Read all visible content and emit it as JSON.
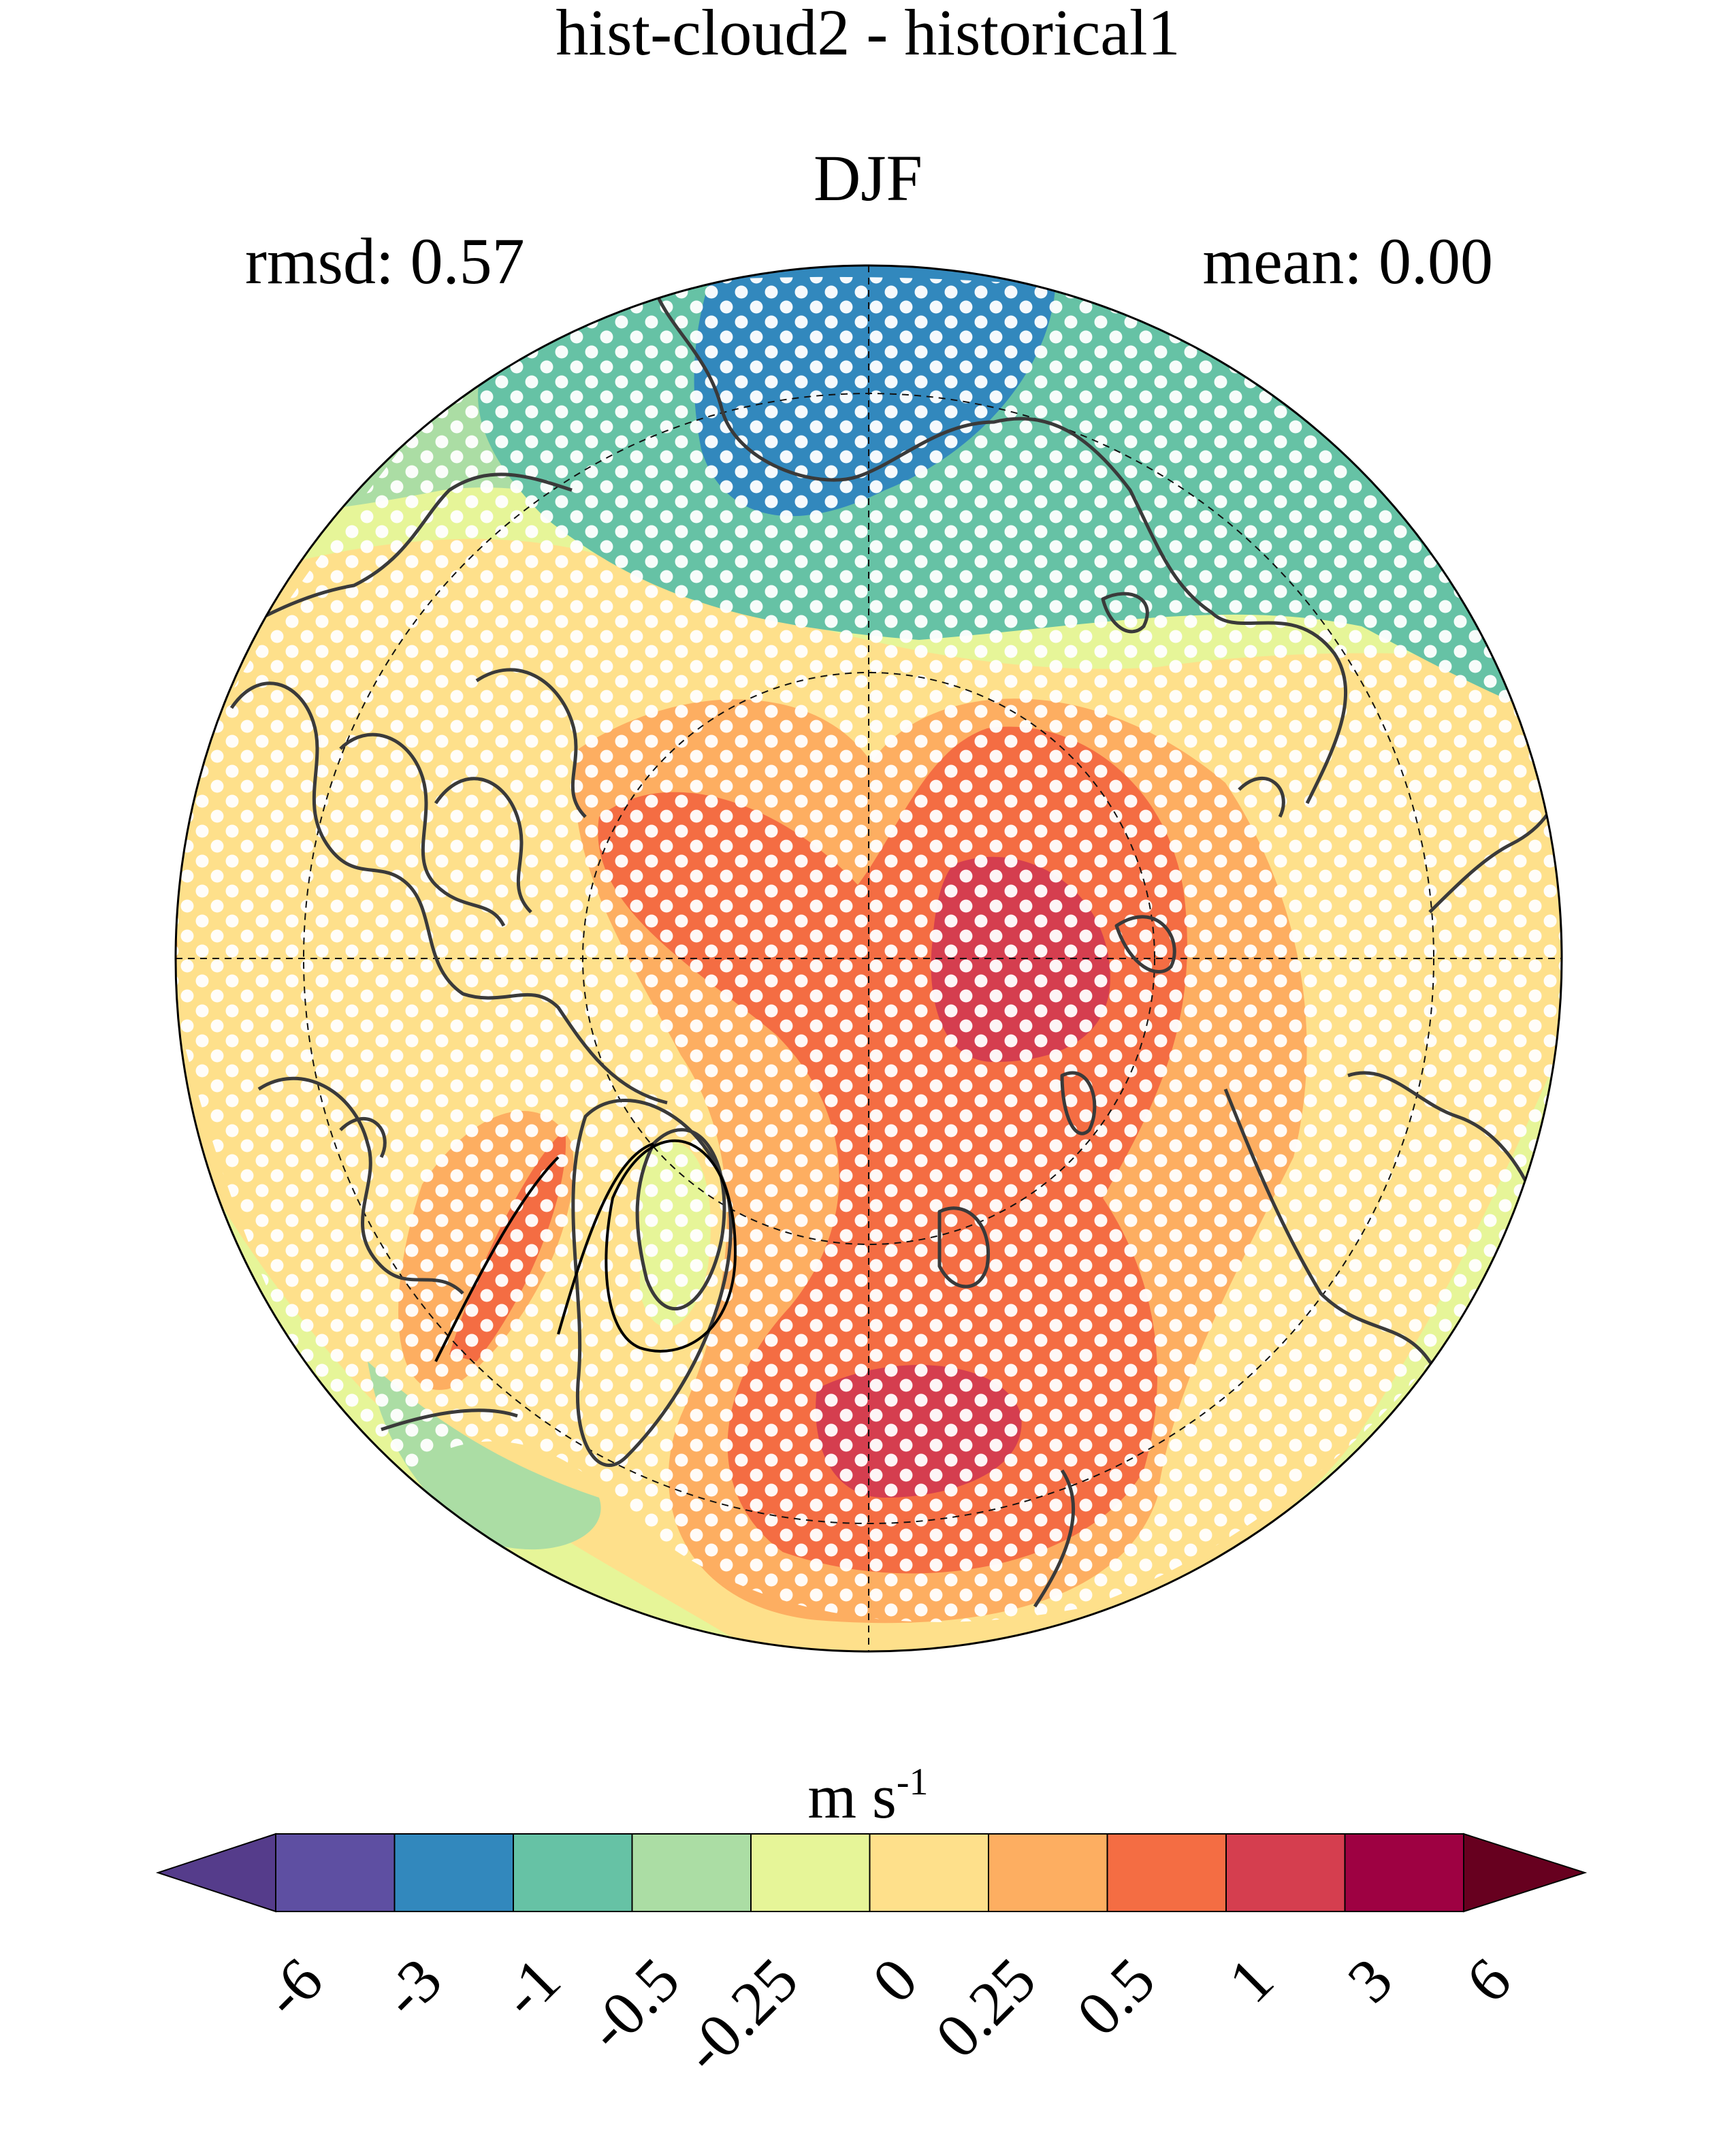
{
  "title": "hist-cloud2 - historical1",
  "subtitle": "DJF",
  "stats": {
    "rmsd": "rmsd: 0.57",
    "mean": "mean: 0.00"
  },
  "colorbar": {
    "units_base": "m s",
    "units_exp": "-1",
    "ticks": [
      "-6",
      "-3",
      "-1",
      "-0.5",
      "-0.25",
      "0",
      "0.25",
      "0.5",
      "1",
      "3",
      "6"
    ],
    "colors": [
      "#5e4fa2",
      "#3288bd",
      "#66c2a5",
      "#abdda4",
      "#e6f598",
      "#fee08b",
      "#fdae61",
      "#f46d43",
      "#d53e4f",
      "#9e0142"
    ],
    "under_color": "#553c8b",
    "over_color": "#67001f",
    "extend": "both"
  },
  "map": {
    "projection": "north-polar-stereographic",
    "background_level_color": "#fee08b",
    "stippling": "white dots mark significant regions",
    "contours": "black coastlines and dashed lat/lon graticule"
  }
}
